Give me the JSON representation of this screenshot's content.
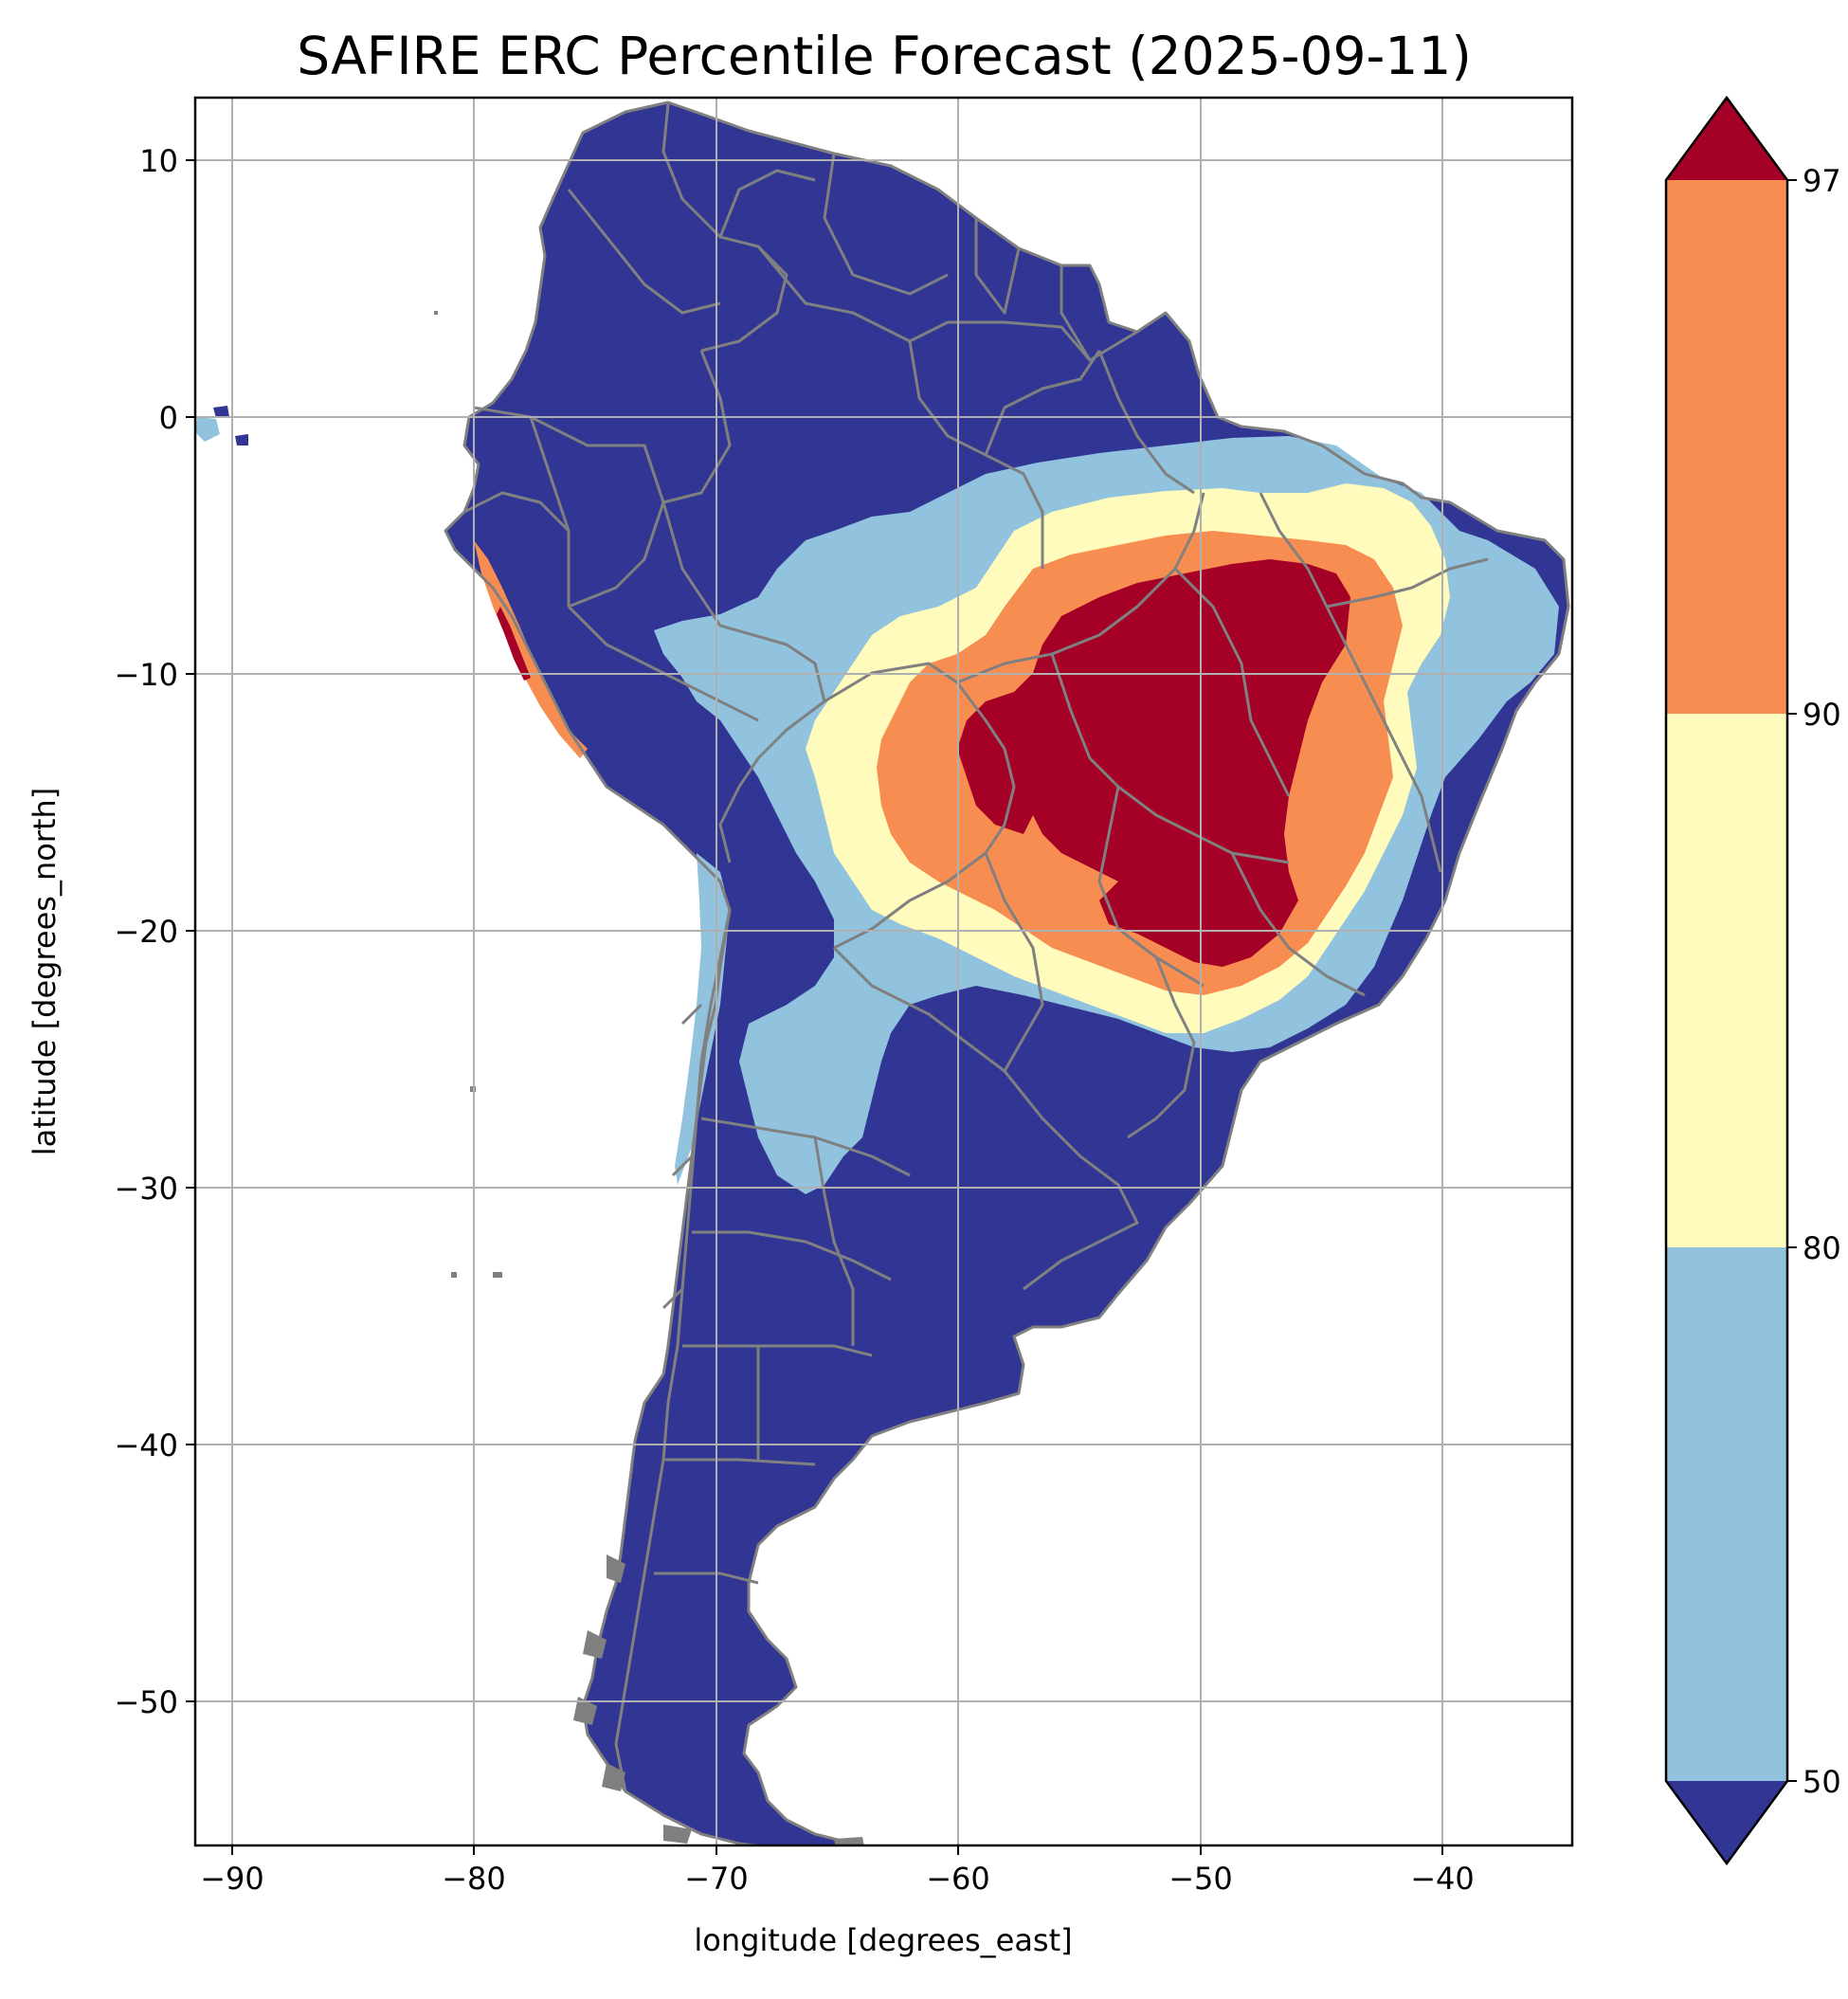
{
  "title": "SAFIRE ERC Percentile Forecast (2025-09-11)",
  "xlabel": "longitude [degrees_east]",
  "ylabel": "latitude [degrees_north]",
  "x_ticks": [
    "−90",
    "−80",
    "−70",
    "−60",
    "−50",
    "−40"
  ],
  "y_ticks": [
    "10",
    "0",
    "−10",
    "−20",
    "−30",
    "−40",
    "−50"
  ],
  "colorbar": {
    "ticks": [
      "97",
      "90",
      "80",
      "50"
    ],
    "extend": "both",
    "colors": {
      "below_50": "#313695",
      "50_80": "#91c2de",
      "80_90": "#fefbbd",
      "90_97": "#f88d51",
      "above_97": "#a50026"
    }
  },
  "map": {
    "region": "South America",
    "x_range": [
      -91.6,
      -35.0
    ],
    "y_range": [
      -55.8,
      12.4
    ],
    "grid": true,
    "boundaries": "country and state borders (gray)",
    "colors": {
      "land_default": "#313695",
      "border": "#808080",
      "grid": "#b0b0b0"
    }
  }
}
